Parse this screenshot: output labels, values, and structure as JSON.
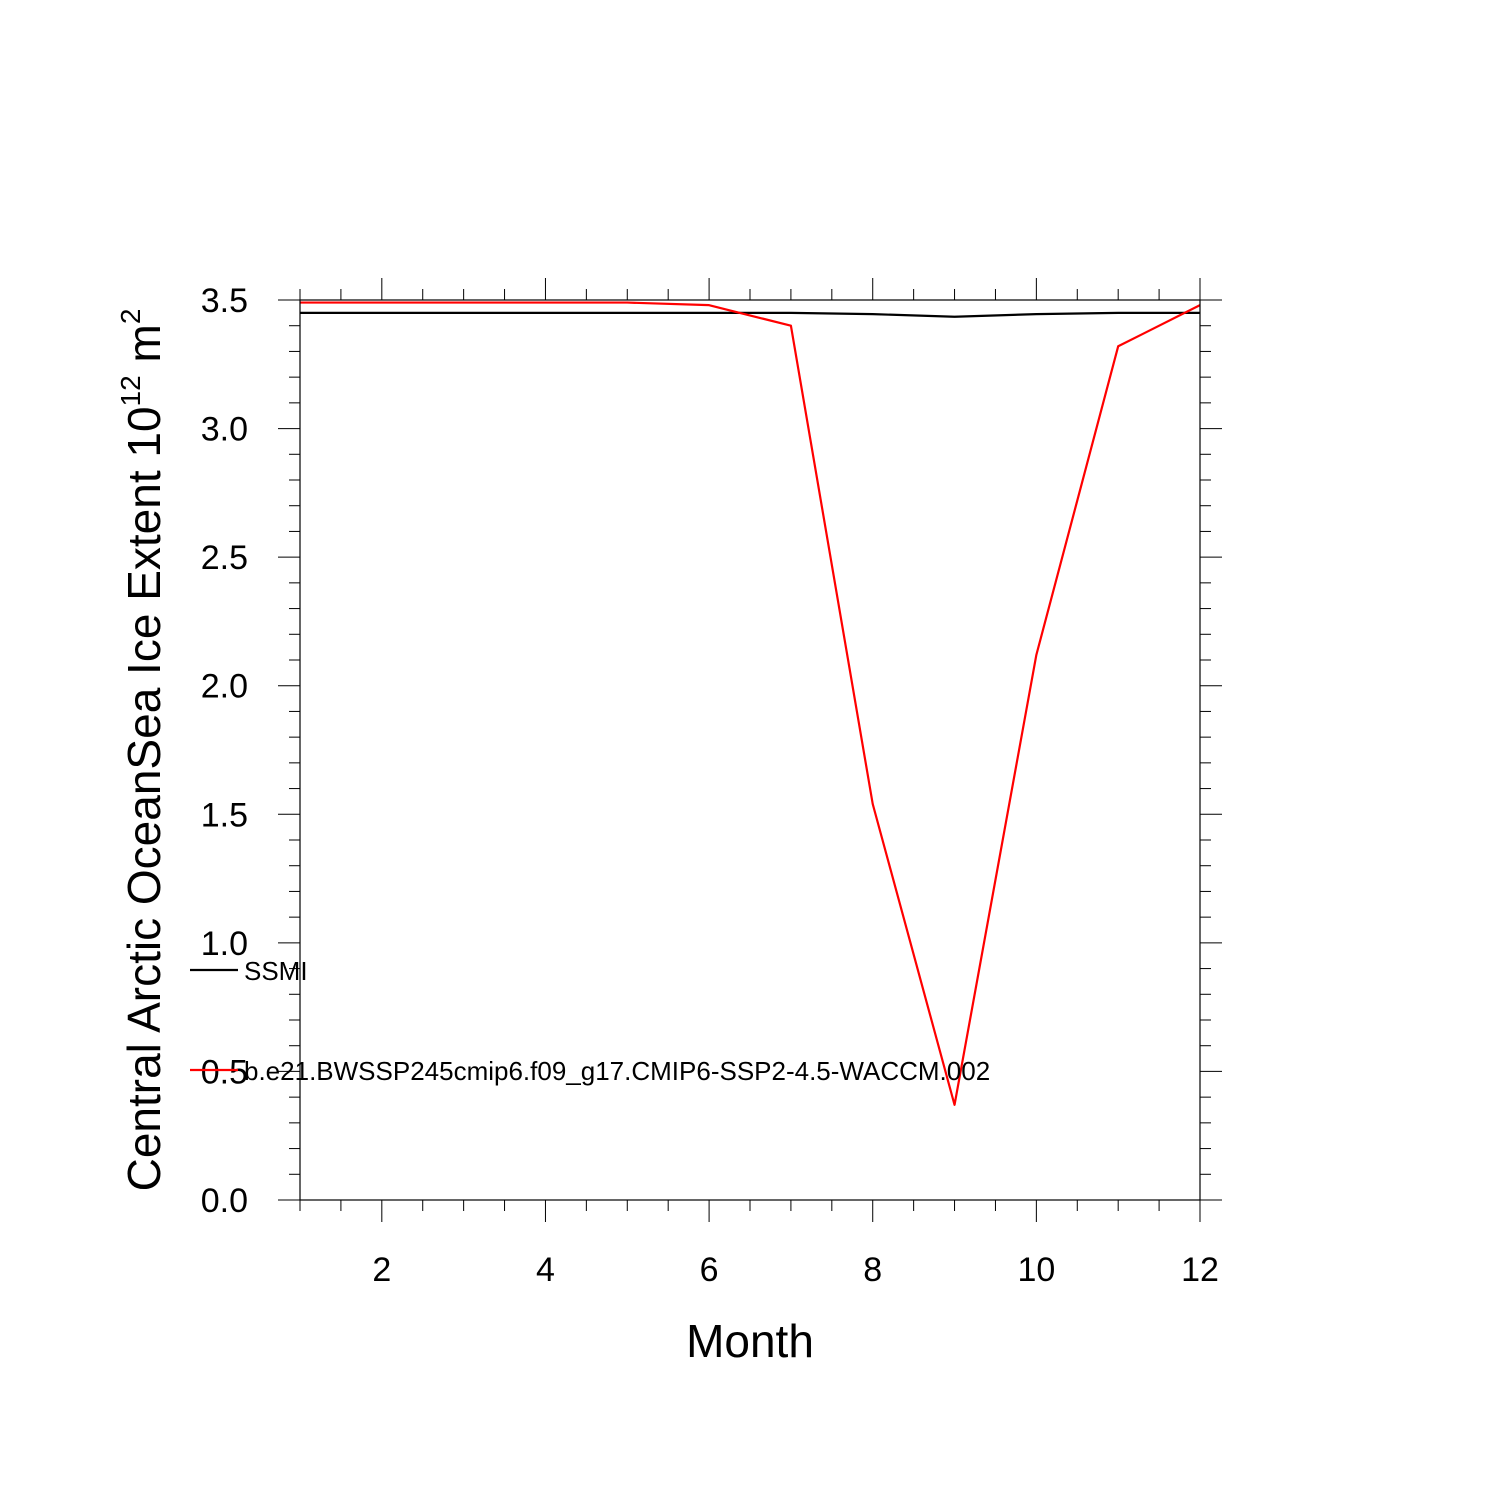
{
  "chart_data": {
    "type": "line",
    "title": "",
    "xlabel": "Month",
    "ylabel": {
      "main": "Central Arctic OceanSea Ice Extent 10",
      "exponent": "12",
      "unit": "m",
      "unit_exponent": "2"
    },
    "xlim": [
      1,
      12
    ],
    "ylim": [
      0.0,
      3.5
    ],
    "x_major_ticks": [
      2,
      4,
      6,
      8,
      10,
      12
    ],
    "x_tick_labels": [
      "2",
      "4",
      "6",
      "8",
      "10",
      "12"
    ],
    "y_major_ticks": [
      0.0,
      0.5,
      1.0,
      1.5,
      2.0,
      2.5,
      3.0,
      3.5
    ],
    "y_tick_labels": [
      "0.0",
      "0.5",
      "1.0",
      "1.5",
      "2.0",
      "2.5",
      "3.0",
      "3.5"
    ],
    "grid": false,
    "legend_position": "left-inside",
    "x": [
      1,
      2,
      3,
      4,
      5,
      6,
      7,
      8,
      9,
      10,
      11,
      12
    ],
    "series": [
      {
        "name": "SSMI",
        "color": "#000000",
        "values": [
          3.45,
          3.45,
          3.45,
          3.45,
          3.45,
          3.45,
          3.45,
          3.445,
          3.435,
          3.445,
          3.45,
          3.45
        ]
      },
      {
        "name": "b.e21.BWSSP245cmip6.f09_g17.CMIP6-SSP2-4.5-WACCM.002",
        "color": "#ff0000",
        "values": [
          3.49,
          3.49,
          3.49,
          3.49,
          3.49,
          3.48,
          3.4,
          1.54,
          0.37,
          2.12,
          3.32,
          3.48
        ]
      }
    ]
  }
}
